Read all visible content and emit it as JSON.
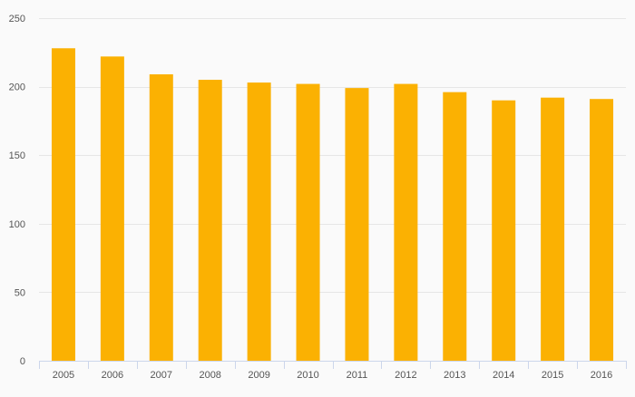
{
  "colors": {
    "background": "#fafafa",
    "bar": "#fbb102",
    "grid": "#e6e6e6",
    "axis_line": "#ccd6eb",
    "tick_label": "#555555"
  },
  "chart_data": {
    "type": "bar",
    "title": "",
    "xlabel": "",
    "ylabel": "",
    "categories": [
      "2005",
      "2006",
      "2007",
      "2008",
      "2009",
      "2010",
      "2011",
      "2012",
      "2013",
      "2014",
      "2015",
      "2016"
    ],
    "values": [
      228,
      222,
      209,
      205,
      203,
      202,
      199,
      202,
      196,
      190,
      192,
      191
    ],
    "ylim": [
      0,
      250
    ],
    "yticks": [
      0,
      50,
      100,
      150,
      200,
      250
    ],
    "grid": true,
    "legend": "none"
  }
}
